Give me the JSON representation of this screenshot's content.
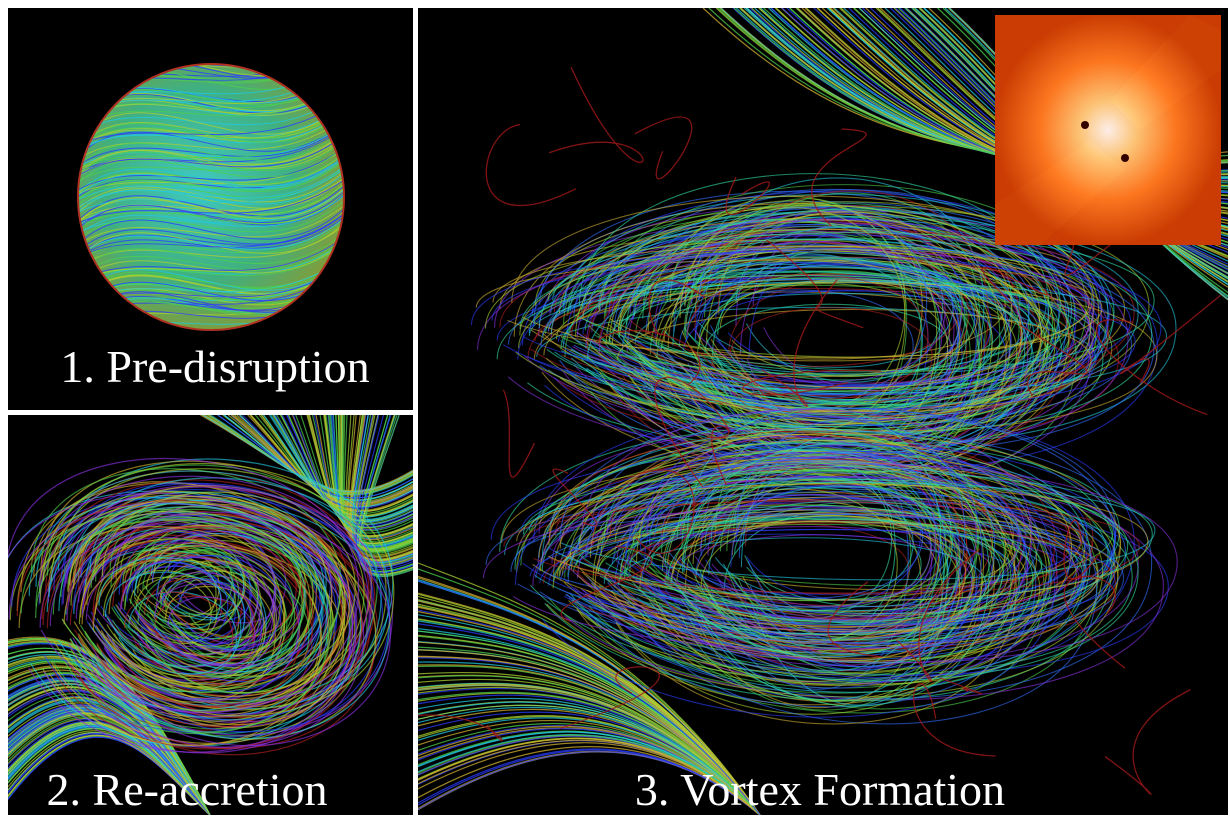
{
  "panels": [
    {
      "label": "1. Pre-disruption"
    },
    {
      "label": "2. Re-accretion"
    },
    {
      "label": "3. Vortex Formation"
    }
  ]
}
